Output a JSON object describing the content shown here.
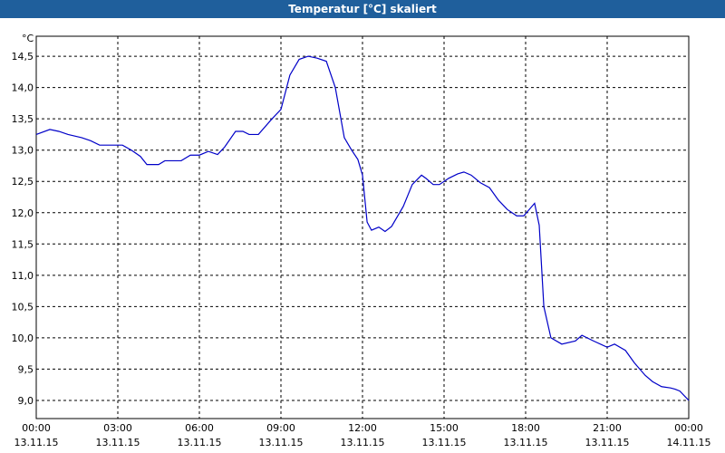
{
  "chart_data": {
    "type": "line",
    "title": "Temperatur [°C] skaliert",
    "y_unit": "°C",
    "x": [
      0,
      0.5,
      0.83,
      1.17,
      1.67,
      2,
      2.33,
      2.83,
      3.17,
      3.5,
      3.83,
      4.07,
      4.5,
      4.73,
      5.33,
      5.67,
      6,
      6.33,
      6.67,
      6.93,
      7.33,
      7.6,
      7.83,
      8.17,
      8.67,
      9,
      9.33,
      9.67,
      10,
      10.33,
      10.67,
      11,
      11.33,
      11.6,
      11.83,
      12,
      12.17,
      12.33,
      12.6,
      12.83,
      13.07,
      13.5,
      13.83,
      14.17,
      14.33,
      14.6,
      14.83,
      15.17,
      15.5,
      15.73,
      16,
      16.33,
      16.67,
      17,
      17.33,
      17.67,
      17.93,
      18.33,
      18.5,
      18.67,
      18.93,
      19.33,
      19.83,
      20.07,
      20.5,
      21,
      21.27,
      21.67,
      22,
      22.4,
      22.67,
      23,
      23.33,
      23.5,
      23.67,
      24
    ],
    "series": [
      {
        "name": "Temperatur",
        "color": "#0000c8",
        "values": [
          13.25,
          13.33,
          13.3,
          13.25,
          13.2,
          13.15,
          13.08,
          13.08,
          13.08,
          13.0,
          12.9,
          12.77,
          12.77,
          12.83,
          12.83,
          12.92,
          12.92,
          12.98,
          12.93,
          13.05,
          13.3,
          13.3,
          13.25,
          13.25,
          13.5,
          13.65,
          14.2,
          14.45,
          14.5,
          14.47,
          14.42,
          14.0,
          13.2,
          13.0,
          12.85,
          12.6,
          11.85,
          11.72,
          11.77,
          11.7,
          11.78,
          12.1,
          12.45,
          12.6,
          12.55,
          12.45,
          12.45,
          12.55,
          12.62,
          12.65,
          12.6,
          12.48,
          12.4,
          12.2,
          12.05,
          11.95,
          11.95,
          12.15,
          11.8,
          10.5,
          10.0,
          9.9,
          9.95,
          10.04,
          9.95,
          9.85,
          9.9,
          9.8,
          9.6,
          9.4,
          9.3,
          9.22,
          9.2,
          9.18,
          9.15,
          9.0
        ]
      }
    ],
    "xlim": [
      0,
      24
    ],
    "xticks": [
      {
        "value": 0,
        "label": "00:00",
        "date": "13.11.15"
      },
      {
        "value": 3,
        "label": "03:00",
        "date": "13.11.15"
      },
      {
        "value": 6,
        "label": "06:00",
        "date": "13.11.15"
      },
      {
        "value": 9,
        "label": "09:00",
        "date": "13.11.15"
      },
      {
        "value": 12,
        "label": "12:00",
        "date": "13.11.15"
      },
      {
        "value": 15,
        "label": "15:00",
        "date": "13.11.15"
      },
      {
        "value": 18,
        "label": "18:00",
        "date": "13.11.15"
      },
      {
        "value": 21,
        "label": "21:00",
        "date": "13.11.15"
      },
      {
        "value": 24,
        "label": "00:00",
        "date": "14.11.15"
      }
    ],
    "ylim": [
      8.71,
      14.82
    ],
    "yticks": [
      {
        "value": 9,
        "label": "9,0"
      },
      {
        "value": 9.5,
        "label": "9,5"
      },
      {
        "value": 10,
        "label": "10,0"
      },
      {
        "value": 10.5,
        "label": "10,5"
      },
      {
        "value": 11,
        "label": "11,0"
      },
      {
        "value": 11.5,
        "label": "11,5"
      },
      {
        "value": 12,
        "label": "12,0"
      },
      {
        "value": 12.5,
        "label": "12,5"
      },
      {
        "value": 13,
        "label": "13,0"
      },
      {
        "value": 13.5,
        "label": "13,5"
      },
      {
        "value": 14,
        "label": "14,0"
      },
      {
        "value": 14.5,
        "label": "14,5"
      }
    ],
    "grid": true
  }
}
